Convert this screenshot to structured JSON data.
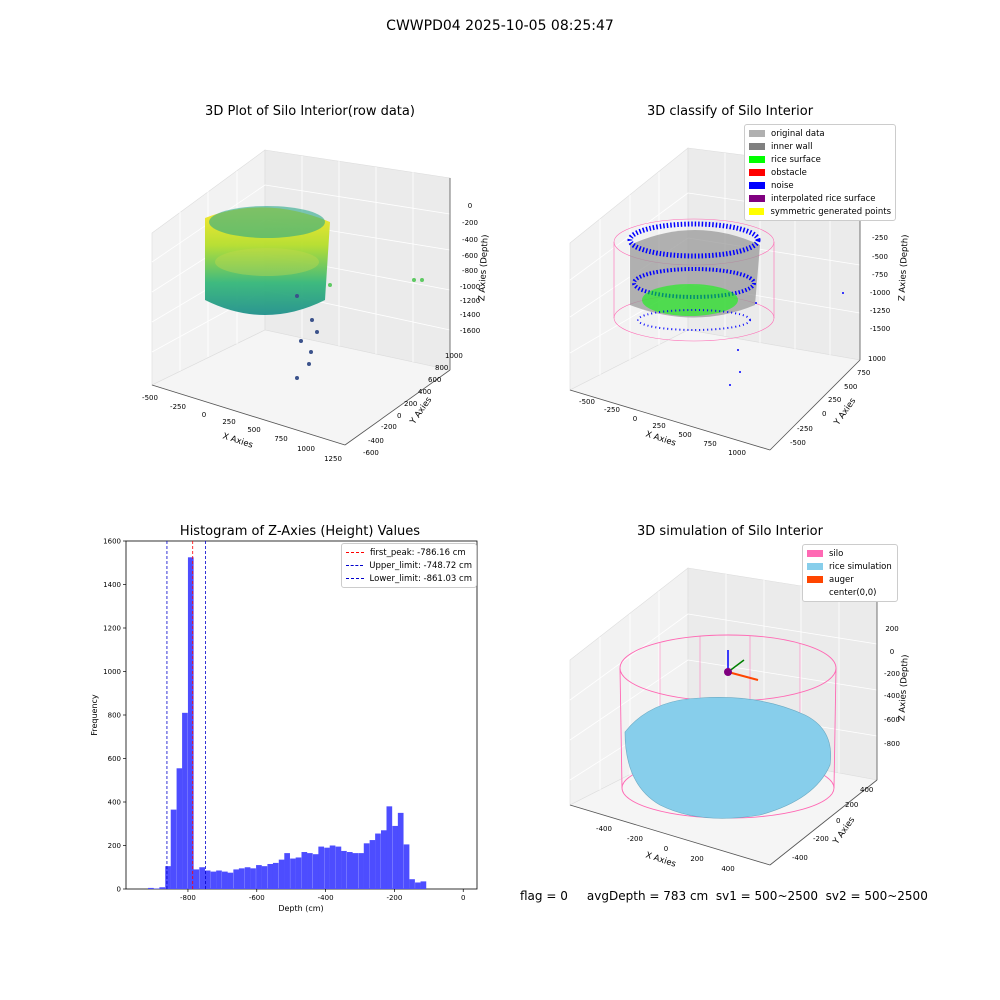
{
  "suptitle": "CWWPD04 2025-10-05 08:25:47",
  "footer": "flag = 0     avgDepth = 783 cm  sv1 = 500~2500  sv2 = 500~2500",
  "colors": {
    "bars": "#4d4dff",
    "first_peak": "#ff0000",
    "limits": "#0000cc",
    "silo": "#ff69b4",
    "rice": "#87ceeb",
    "auger": "#ff4500"
  },
  "plot1": {
    "title": "3D Plot of Silo Interior(row data)",
    "xlabel": "X Axies",
    "ylabel": "Y Axies",
    "zlabel": "Z Axies (Depth)",
    "xticks": [
      "-500",
      "-250",
      "0",
      "250",
      "500",
      "750",
      "1000",
      "1250"
    ],
    "yticks": [
      "-600",
      "-400",
      "-200",
      "0",
      "200",
      "400",
      "600",
      "800",
      "1000"
    ],
    "zticks": [
      "0",
      "-200",
      "-400",
      "-600",
      "-800",
      "-1000",
      "-1200",
      "-1400",
      "-1600"
    ]
  },
  "plot2": {
    "title": "3D classify of Silo Interior",
    "xlabel": "X Axies",
    "ylabel": "Y Axies",
    "zlabel": "Z Axies (Depth)",
    "xticks": [
      "-500",
      "-250",
      "0",
      "250",
      "500",
      "750",
      "1000"
    ],
    "yticks": [
      "-500",
      "-250",
      "0",
      "250",
      "500",
      "750",
      "1000"
    ],
    "zticks": [
      "-250",
      "-500",
      "-750",
      "-1000",
      "-1250",
      "-1500"
    ],
    "legend": [
      {
        "label": "original data",
        "color": "#b0b0b0"
      },
      {
        "label": "inner wall",
        "color": "#808080"
      },
      {
        "label": "rice surface",
        "color": "#00ff00"
      },
      {
        "label": "obstacle",
        "color": "#ff0000"
      },
      {
        "label": "noise",
        "color": "#0000ff"
      },
      {
        "label": "interpolated rice surface",
        "color": "#800080"
      },
      {
        "label": "symmetric generated points",
        "color": "#ffff00"
      }
    ]
  },
  "plot4": {
    "title": "3D simulation of Silo Interior",
    "xlabel": "X Axies",
    "ylabel": "Y Axies",
    "zlabel": "Z Axies (Depth)",
    "xticks": [
      "-400",
      "-200",
      "0",
      "200",
      "400"
    ],
    "yticks": [
      "-400",
      "-200",
      "0",
      "200",
      "400"
    ],
    "zticks": [
      "200",
      "0",
      "-200",
      "-400",
      "-600",
      "-800"
    ],
    "legend": [
      {
        "label": "silo",
        "color": "#ff69b4"
      },
      {
        "label": "rice simulation",
        "color": "#87ceeb"
      },
      {
        "label": "auger",
        "color": "#ff4500"
      },
      {
        "label": "center(0,0)",
        "color": "#ffffff"
      }
    ]
  },
  "chart_data": [
    {
      "type": "bar",
      "title": "Histogram of Z-Axies (Height) Values",
      "xlabel": "Depth (cm)",
      "ylabel": "Frequency",
      "xlim": [
        -980,
        40
      ],
      "ylim": [
        0,
        1600
      ],
      "xticks": [
        -800,
        -600,
        -400,
        -200,
        0
      ],
      "yticks": [
        0,
        200,
        400,
        600,
        800,
        1000,
        1200,
        1400,
        1600
      ],
      "bin_width": 16.5,
      "bins": [
        {
          "x": -916,
          "v": 5
        },
        {
          "x": -899,
          "v": 2
        },
        {
          "x": -883,
          "v": 8
        },
        {
          "x": -866,
          "v": 105
        },
        {
          "x": -850,
          "v": 365
        },
        {
          "x": -833,
          "v": 555
        },
        {
          "x": -817,
          "v": 810
        },
        {
          "x": -800,
          "v": 1525
        },
        {
          "x": -784,
          "v": 90
        },
        {
          "x": -767,
          "v": 100
        },
        {
          "x": -751,
          "v": 85
        },
        {
          "x": -734,
          "v": 80
        },
        {
          "x": -718,
          "v": 85
        },
        {
          "x": -701,
          "v": 80
        },
        {
          "x": -685,
          "v": 75
        },
        {
          "x": -668,
          "v": 90
        },
        {
          "x": -652,
          "v": 95
        },
        {
          "x": -635,
          "v": 100
        },
        {
          "x": -619,
          "v": 95
        },
        {
          "x": -602,
          "v": 110
        },
        {
          "x": -586,
          "v": 105
        },
        {
          "x": -569,
          "v": 115
        },
        {
          "x": -553,
          "v": 120
        },
        {
          "x": -536,
          "v": 135
        },
        {
          "x": -520,
          "v": 165
        },
        {
          "x": -503,
          "v": 140
        },
        {
          "x": -487,
          "v": 145
        },
        {
          "x": -470,
          "v": 170
        },
        {
          "x": -454,
          "v": 165
        },
        {
          "x": -437,
          "v": 160
        },
        {
          "x": -421,
          "v": 195
        },
        {
          "x": -404,
          "v": 190
        },
        {
          "x": -388,
          "v": 200
        },
        {
          "x": -371,
          "v": 195
        },
        {
          "x": -355,
          "v": 175
        },
        {
          "x": -338,
          "v": 170
        },
        {
          "x": -322,
          "v": 165
        },
        {
          "x": -305,
          "v": 165
        },
        {
          "x": -289,
          "v": 210
        },
        {
          "x": -272,
          "v": 225
        },
        {
          "x": -256,
          "v": 255
        },
        {
          "x": -239,
          "v": 270
        },
        {
          "x": -223,
          "v": 380
        },
        {
          "x": -206,
          "v": 290
        },
        {
          "x": -190,
          "v": 350
        },
        {
          "x": -173,
          "v": 205
        },
        {
          "x": -157,
          "v": 45
        },
        {
          "x": -140,
          "v": 30
        },
        {
          "x": -124,
          "v": 35
        }
      ],
      "vlines": [
        {
          "name": "first_peak",
          "value": -786.16,
          "label": "first_peak: -786.16 cm",
          "color": "#ff0000"
        },
        {
          "name": "upper_limit",
          "value": -748.72,
          "label": "Upper_limit: -748.72 cm",
          "color": "#0000cc"
        },
        {
          "name": "lower_limit",
          "value": -861.03,
          "label": "Lower_limit: -861.03 cm",
          "color": "#0000cc"
        }
      ],
      "legend_position": "top-right"
    }
  ]
}
